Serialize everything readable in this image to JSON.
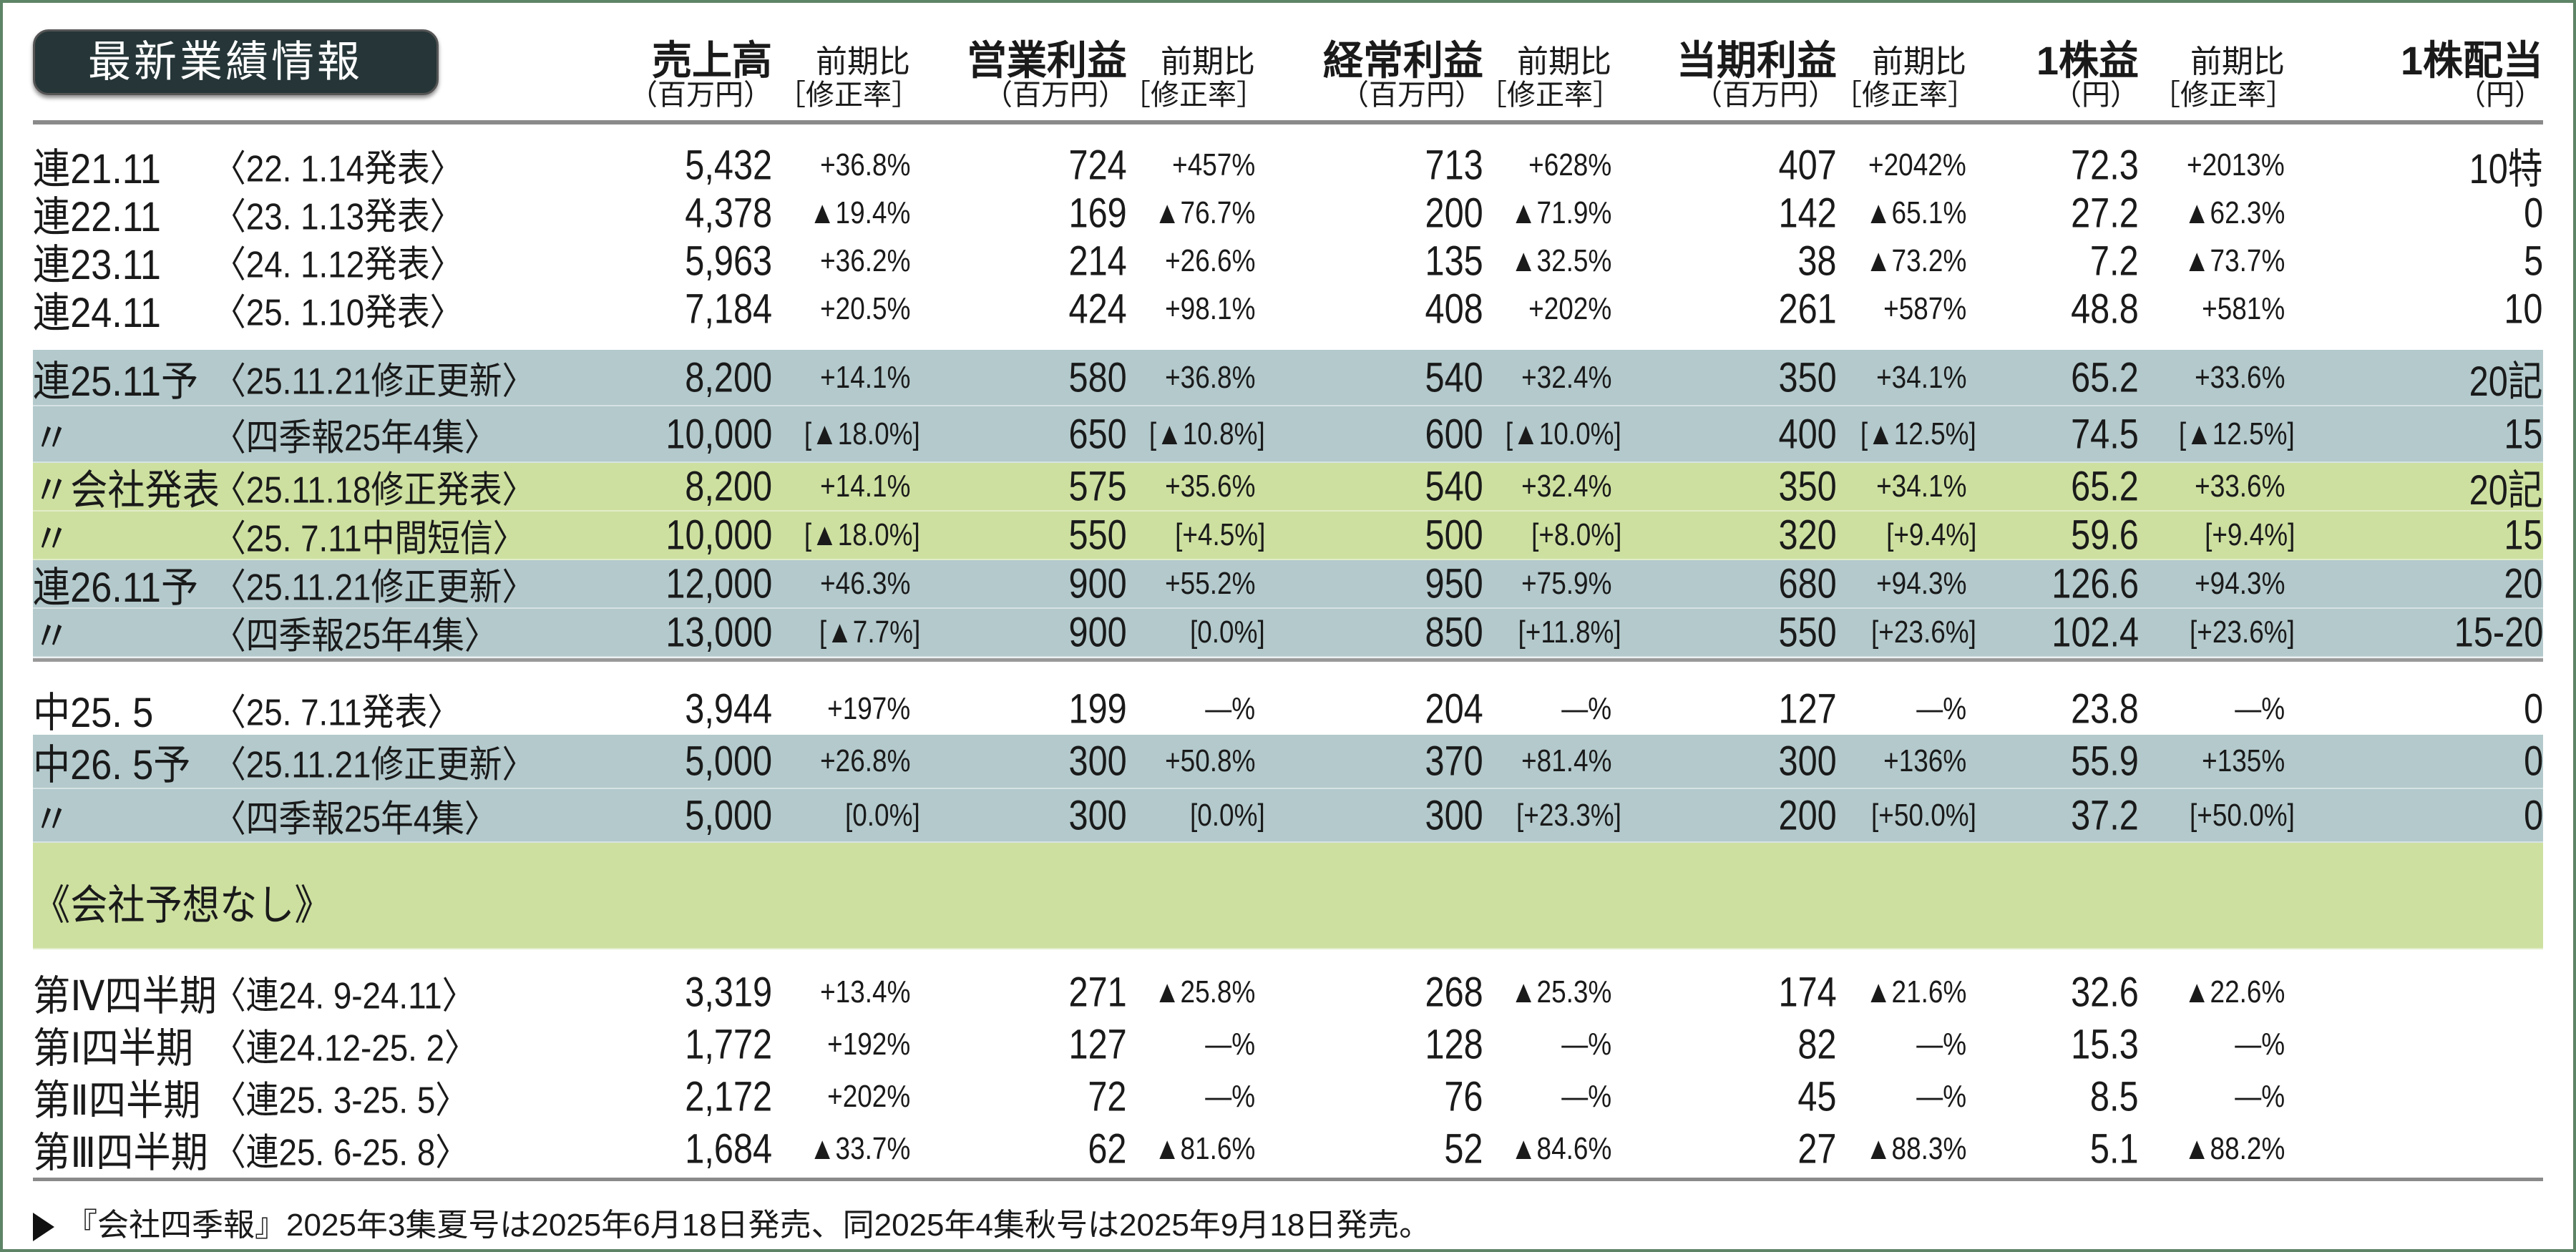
{
  "title": "最新業績情報",
  "colors": {
    "forecast_row": "#b3c9cc",
    "company_row": "#cde0a0",
    "title_bg": "#263638",
    "frame": "#5d8466"
  },
  "headers": [
    {
      "line1": "売上高",
      "line2": "（百万円）"
    },
    {
      "line1": "前期比",
      "line2": "［修正率］"
    },
    {
      "line1": "営業利益",
      "line2": "（百万円）"
    },
    {
      "line1": "前期比",
      "line2": "［修正率］"
    },
    {
      "line1": "経常利益",
      "line2": "（百万円）"
    },
    {
      "line1": "前期比",
      "line2": "［修正率］"
    },
    {
      "line1": "当期利益",
      "line2": "（百万円）"
    },
    {
      "line1": "前期比",
      "line2": "［修正率］"
    },
    {
      "line1": "1株益",
      "line2": "（円）"
    },
    {
      "line1": "前期比",
      "line2": "［修正率］"
    },
    {
      "line1": "1株配当",
      "line2": "（円）"
    }
  ],
  "rows": [
    {
      "highlight": "none",
      "label": "連21.11",
      "sub": "〈22. 1.14発表〉",
      "values": [
        "5,432",
        "+36.8%",
        "724",
        "+457%",
        "713",
        "+628%",
        "407",
        "+2042%",
        "72.3",
        "+2013%",
        "10特"
      ]
    },
    {
      "highlight": "none",
      "label": "連22.11",
      "sub": "〈23. 1.13発表〉",
      "values": [
        "4,378",
        "▲19.4%",
        "169",
        "▲76.7%",
        "200",
        "▲71.9%",
        "142",
        "▲65.1%",
        "27.2",
        "▲62.3%",
        "0"
      ]
    },
    {
      "highlight": "none",
      "label": "連23.11",
      "sub": "〈24. 1.12発表〉",
      "values": [
        "5,963",
        "+36.2%",
        "214",
        "+26.6%",
        "135",
        "▲32.5%",
        "38",
        "▲73.2%",
        "7.2",
        "▲73.7%",
        "5"
      ]
    },
    {
      "highlight": "none",
      "label": "連24.11",
      "sub": "〈25. 1.10発表〉",
      "values": [
        "7,184",
        "+20.5%",
        "424",
        "+98.1%",
        "408",
        "+202%",
        "261",
        "+587%",
        "48.8",
        "+581%",
        "10"
      ]
    },
    {
      "highlight": "blue",
      "label": "連25.11予",
      "sub": "〈25.11.21修正更新〉",
      "values": [
        "8,200",
        "+14.1%",
        "580",
        "+36.8%",
        "540",
        "+32.4%",
        "350",
        "+34.1%",
        "65.2",
        "+33.6%",
        "20記"
      ]
    },
    {
      "highlight": "blue",
      "label": "〃",
      "sub": "〈四季報25年4集〉",
      "values": [
        "10,000",
        "[▲18.0%]",
        "650",
        "[▲10.8%]",
        "600",
        "[▲10.0%]",
        "400",
        "[▲12.5%]",
        "74.5",
        "[▲12.5%]",
        "15"
      ]
    },
    {
      "highlight": "green",
      "label": "〃会社発表",
      "sub": "〈25.11.18修正発表〉",
      "values": [
        "8,200",
        "+14.1%",
        "575",
        "+35.6%",
        "540",
        "+32.4%",
        "350",
        "+34.1%",
        "65.2",
        "+33.6%",
        "20記"
      ]
    },
    {
      "highlight": "green",
      "label": "〃",
      "sub": "〈25. 7.11中間短信〉",
      "values": [
        "10,000",
        "[▲18.0%]",
        "550",
        "[+4.5%]",
        "500",
        "[+8.0%]",
        "320",
        "[+9.4%]",
        "59.6",
        "[+9.4%]",
        "15"
      ]
    },
    {
      "highlight": "blue",
      "label": "連26.11予",
      "sub": "〈25.11.21修正更新〉",
      "values": [
        "12,000",
        "+46.3%",
        "900",
        "+55.2%",
        "950",
        "+75.9%",
        "680",
        "+94.3%",
        "126.6",
        "+94.3%",
        "20"
      ]
    },
    {
      "highlight": "blue",
      "label": "〃",
      "sub": "〈四季報25年4集〉",
      "values": [
        "13,000",
        "[▲7.7%]",
        "900",
        "[0.0%]",
        "850",
        "[+11.8%]",
        "550",
        "[+23.6%]",
        "102.4",
        "[+23.6%]",
        "15-20"
      ]
    },
    {
      "highlight": "none",
      "label": "中25. 5",
      "sub": "〈25. 7.11発表〉",
      "values": [
        "3,944",
        "+197%",
        "199",
        "—%",
        "204",
        "—%",
        "127",
        "—%",
        "23.8",
        "—%",
        "0"
      ]
    },
    {
      "highlight": "blue",
      "label": "中26. 5予",
      "sub": "〈25.11.21修正更新〉",
      "values": [
        "5,000",
        "+26.8%",
        "300",
        "+50.8%",
        "370",
        "+81.4%",
        "300",
        "+136%",
        "55.9",
        "+135%",
        "0"
      ]
    },
    {
      "highlight": "blue",
      "label": "〃",
      "sub": "〈四季報25年4集〉",
      "values": [
        "5,000",
        "[0.0%]",
        "300",
        "[0.0%]",
        "300",
        "[+23.3%]",
        "200",
        "[+50.0%]",
        "37.2",
        "[+50.0%]",
        "0"
      ]
    },
    {
      "highlight": "green",
      "label": "《会社予想なし》",
      "sub": "",
      "values": []
    },
    {
      "highlight": "none",
      "label": "第Ⅳ四半期",
      "sub": "〈連24. 9-24.11〉",
      "values": [
        "3,319",
        "+13.4%",
        "271",
        "▲25.8%",
        "268",
        "▲25.3%",
        "174",
        "▲21.6%",
        "32.6",
        "▲22.6%",
        ""
      ]
    },
    {
      "highlight": "none",
      "label": "第Ⅰ四半期",
      "sub": "〈連24.12-25. 2〉",
      "values": [
        "1,772",
        "+192%",
        "127",
        "—%",
        "128",
        "—%",
        "82",
        "—%",
        "15.3",
        "—%",
        ""
      ]
    },
    {
      "highlight": "none",
      "label": "第Ⅱ四半期",
      "sub": "〈連25. 3-25. 5〉",
      "values": [
        "2,172",
        "+202%",
        "72",
        "—%",
        "76",
        "—%",
        "45",
        "—%",
        "8.5",
        "—%",
        ""
      ]
    },
    {
      "highlight": "none",
      "label": "第Ⅲ四半期",
      "sub": "〈連25. 6-25. 8〉",
      "values": [
        "1,684",
        "▲33.7%",
        "62",
        "▲81.6%",
        "52",
        "▲84.6%",
        "27",
        "▲88.3%",
        "5.1",
        "▲88.2%",
        ""
      ]
    }
  ],
  "footer": {
    "icon": "triangle-right-icon",
    "text": "『会社四季報』2025年3集夏号は2025年6月18日発売、同2025年4集秋号は2025年9月18日発売。"
  }
}
